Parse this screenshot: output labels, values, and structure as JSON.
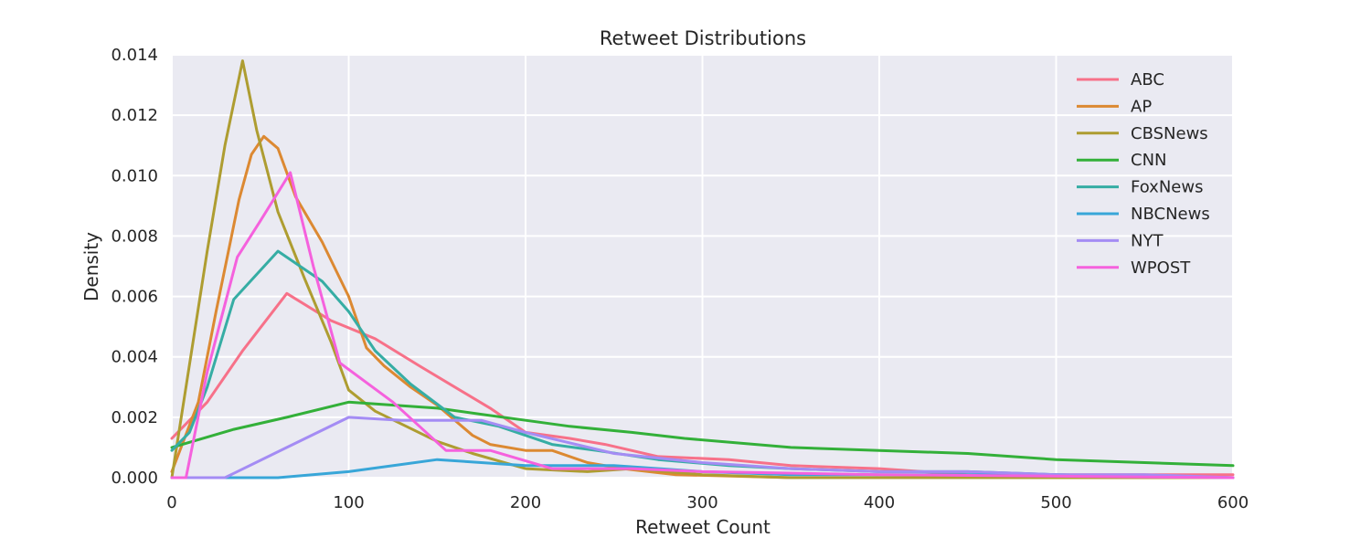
{
  "chart_data": {
    "type": "line",
    "title": "Retweet Distributions",
    "xlabel": "Retweet Count",
    "ylabel": "Density",
    "xlim": [
      0,
      600
    ],
    "ylim": [
      0,
      0.014
    ],
    "xticks": [
      0,
      100,
      200,
      300,
      400,
      500,
      600
    ],
    "xtick_labels": [
      "0",
      "100",
      "200",
      "300",
      "400",
      "500",
      "600"
    ],
    "yticks": [
      0,
      0.002,
      0.004,
      0.006,
      0.008,
      0.01,
      0.012,
      0.014
    ],
    "ytick_labels": [
      "0.000",
      "0.002",
      "0.004",
      "0.006",
      "0.008",
      "0.010",
      "0.012",
      "0.014"
    ],
    "grid": true,
    "background": "#eaeaf2",
    "legend_position": "top-right",
    "series": [
      {
        "name": "ABC",
        "color": "#f77189",
        "points": [
          [
            0,
            0.0013
          ],
          [
            20,
            0.0025
          ],
          [
            40,
            0.0042
          ],
          [
            65,
            0.0061
          ],
          [
            90,
            0.0052
          ],
          [
            115,
            0.0046
          ],
          [
            140,
            0.0037
          ],
          [
            160,
            0.003
          ],
          [
            180,
            0.0023
          ],
          [
            200,
            0.0015
          ],
          [
            225,
            0.0013
          ],
          [
            245,
            0.0011
          ],
          [
            275,
            0.0007
          ],
          [
            315,
            0.0006
          ],
          [
            350,
            0.0004
          ],
          [
            400,
            0.0003
          ],
          [
            450,
            0.0001
          ],
          [
            500,
            0.0001
          ],
          [
            600,
            0.0001
          ]
        ]
      },
      {
        "name": "AP",
        "color": "#dc8932",
        "points": [
          [
            0,
            0.0002
          ],
          [
            15,
            0.0025
          ],
          [
            25,
            0.0055
          ],
          [
            38,
            0.0092
          ],
          [
            45,
            0.0107
          ],
          [
            52,
            0.0113
          ],
          [
            60,
            0.0109
          ],
          [
            70,
            0.0093
          ],
          [
            85,
            0.0078
          ],
          [
            100,
            0.006
          ],
          [
            110,
            0.0043
          ],
          [
            120,
            0.0037
          ],
          [
            135,
            0.003
          ],
          [
            150,
            0.0024
          ],
          [
            170,
            0.0014
          ],
          [
            180,
            0.0011
          ],
          [
            200,
            0.0009
          ],
          [
            215,
            0.0009
          ],
          [
            235,
            0.0005
          ],
          [
            255,
            0.0003
          ],
          [
            285,
            0.0001
          ],
          [
            350,
            0.0
          ],
          [
            600,
            0.0
          ]
        ]
      },
      {
        "name": "CBSNews",
        "color": "#ae9d31",
        "points": [
          [
            0,
            0.0
          ],
          [
            20,
            0.0075
          ],
          [
            30,
            0.011
          ],
          [
            40,
            0.0138
          ],
          [
            48,
            0.0115
          ],
          [
            60,
            0.0088
          ],
          [
            75,
            0.0066
          ],
          [
            90,
            0.0045
          ],
          [
            100,
            0.0029
          ],
          [
            115,
            0.0022
          ],
          [
            150,
            0.0012
          ],
          [
            170,
            0.0008
          ],
          [
            200,
            0.0003
          ],
          [
            235,
            0.0002
          ],
          [
            260,
            0.0003
          ],
          [
            300,
            0.0001
          ],
          [
            350,
            0.0
          ],
          [
            600,
            0.0
          ]
        ]
      },
      {
        "name": "CNN",
        "color": "#33b039",
        "points": [
          [
            0,
            0.001
          ],
          [
            35,
            0.0016
          ],
          [
            65,
            0.002
          ],
          [
            100,
            0.0025
          ],
          [
            150,
            0.0023
          ],
          [
            175,
            0.0021
          ],
          [
            200,
            0.0019
          ],
          [
            225,
            0.0017
          ],
          [
            260,
            0.0015
          ],
          [
            290,
            0.0013
          ],
          [
            350,
            0.001
          ],
          [
            400,
            0.0009
          ],
          [
            450,
            0.0008
          ],
          [
            500,
            0.0006
          ],
          [
            550,
            0.0005
          ],
          [
            600,
            0.0004
          ]
        ]
      },
      {
        "name": "FoxNews",
        "color": "#36ada4",
        "points": [
          [
            0,
            0.0009
          ],
          [
            10,
            0.0015
          ],
          [
            20,
            0.003
          ],
          [
            35,
            0.0059
          ],
          [
            60,
            0.0075
          ],
          [
            85,
            0.0065
          ],
          [
            100,
            0.0055
          ],
          [
            115,
            0.0042
          ],
          [
            135,
            0.0031
          ],
          [
            160,
            0.002
          ],
          [
            185,
            0.0017
          ],
          [
            200,
            0.0014
          ],
          [
            215,
            0.0011
          ],
          [
            240,
            0.0009
          ],
          [
            275,
            0.0006
          ],
          [
            315,
            0.0004
          ],
          [
            350,
            0.0003
          ],
          [
            400,
            0.0002
          ],
          [
            450,
            0.0002
          ],
          [
            500,
            0.0001
          ],
          [
            600,
            0.0
          ]
        ]
      },
      {
        "name": "NBCNews",
        "color": "#38a6d8",
        "points": [
          [
            0,
            0.0
          ],
          [
            35,
            0.0
          ],
          [
            60,
            0.0
          ],
          [
            100,
            0.0002
          ],
          [
            150,
            0.0006
          ],
          [
            200,
            0.0004
          ],
          [
            250,
            0.0004
          ],
          [
            300,
            0.0002
          ],
          [
            350,
            0.0001
          ],
          [
            400,
            0.0001
          ],
          [
            500,
            0.0001
          ],
          [
            600,
            0.0
          ]
        ]
      },
      {
        "name": "NYT",
        "color": "#a48cf4",
        "points": [
          [
            0,
            0.0
          ],
          [
            30,
            0.0
          ],
          [
            65,
            0.001
          ],
          [
            100,
            0.002
          ],
          [
            130,
            0.0019
          ],
          [
            175,
            0.0019
          ],
          [
            200,
            0.0015
          ],
          [
            250,
            0.0008
          ],
          [
            300,
            0.0005
          ],
          [
            350,
            0.0003
          ],
          [
            400,
            0.0002
          ],
          [
            450,
            0.0002
          ],
          [
            500,
            0.0001
          ],
          [
            550,
            0.0001
          ],
          [
            600,
            0.0
          ]
        ]
      },
      {
        "name": "WPOST",
        "color": "#f561dd",
        "points": [
          [
            0,
            0.0
          ],
          [
            8,
            0.0
          ],
          [
            20,
            0.0035
          ],
          [
            37,
            0.0073
          ],
          [
            50,
            0.0085
          ],
          [
            67,
            0.0101
          ],
          [
            80,
            0.007
          ],
          [
            95,
            0.0038
          ],
          [
            125,
            0.0025
          ],
          [
            155,
            0.0009
          ],
          [
            180,
            0.0009
          ],
          [
            215,
            0.0003
          ],
          [
            260,
            0.0003
          ],
          [
            300,
            0.0002
          ],
          [
            400,
            0.0001
          ],
          [
            600,
            0.0
          ]
        ]
      }
    ]
  }
}
